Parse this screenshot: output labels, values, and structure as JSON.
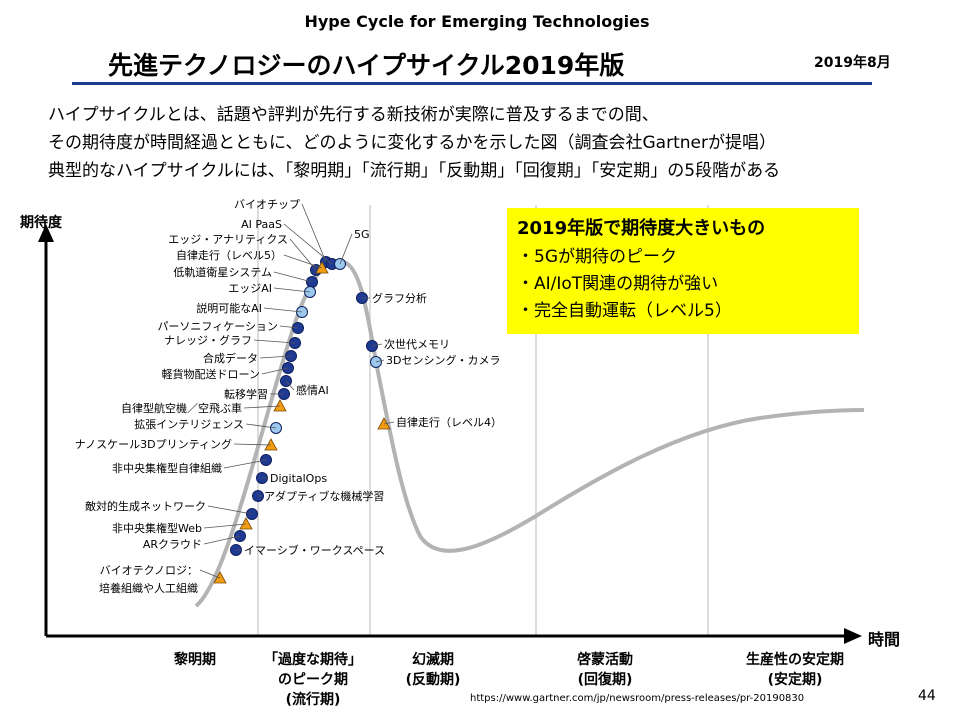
{
  "header": {
    "subtitle": "Hype Cycle for Emerging Technologies",
    "title": "先進テクノロジーのハイプサイクル2019年版",
    "date": "2019年8月"
  },
  "intro": {
    "line1": "ハイプサイクルとは、話題や評判が先行する新技術が実際に普及するまでの間、",
    "line2": "その期待度が時間経過とともに、どのように変化するかを示した図（調査会社Gartnerが提唱）",
    "line3": "典型的なハイプサイクルには、「黎明期」「流行期」「反動期」「回復期」「安定期」の5段階がある"
  },
  "axes": {
    "y_label": "期待度",
    "x_label": "時間"
  },
  "callout": {
    "title": "2019年版で期待度大きいもの",
    "items": [
      "・5Gが期待のピーク",
      "・AI/IoT関連の期待が強い",
      "・完全自動運転（レベル5）"
    ]
  },
  "phases": {
    "p1": "黎明期",
    "p2_line1": "「過度な期待」",
    "p2_line2": "のピーク期",
    "p2_line3": "(流行期)",
    "p3_line1": "幻滅期",
    "p3_line2": "(反動期)",
    "p4_line1": "啓蒙活動",
    "p4_line2": "(回復期)",
    "p5_line1": "生産性の安定期",
    "p5_line2": "(安定期)"
  },
  "colors": {
    "dark_marker": "#1f3a93",
    "light_marker": "#9ec9ef",
    "triangle_marker": "#f39c12",
    "curve": "#b3b3b3",
    "callout_bg": "#ffff00",
    "title_rule": "#1a3a8a"
  },
  "technologies": [
    {
      "name": "バイオチップ",
      "marker": "dark"
    },
    {
      "name": "AI PaaS",
      "marker": "dark"
    },
    {
      "name": "5G",
      "marker": "light"
    },
    {
      "name": "エッジ・アナリティクス",
      "marker": "dark"
    },
    {
      "name": "自律走行（レベル5）",
      "marker": "triangle"
    },
    {
      "name": "低軌道衛星システム",
      "marker": "dark"
    },
    {
      "name": "エッジAI",
      "marker": "light"
    },
    {
      "name": "グラフ分析",
      "marker": "dark"
    },
    {
      "name": "説明可能なAI",
      "marker": "light"
    },
    {
      "name": "パーソニフィケーション",
      "marker": "dark"
    },
    {
      "name": "ナレッジ・グラフ",
      "marker": "dark"
    },
    {
      "name": "次世代メモリ",
      "marker": "dark"
    },
    {
      "name": "3Dセンシング・カメラ",
      "marker": "light"
    },
    {
      "name": "合成データ",
      "marker": "dark"
    },
    {
      "name": "軽貨物配送ドローン",
      "marker": "dark"
    },
    {
      "name": "感情AI",
      "marker": "dark"
    },
    {
      "name": "転移学習",
      "marker": "dark"
    },
    {
      "name": "自律型航空機／空飛ぶ車",
      "marker": "triangle"
    },
    {
      "name": "拡張インテリジェンス",
      "marker": "light"
    },
    {
      "name": "自律走行（レベル4）",
      "marker": "triangle"
    },
    {
      "name": "ナノスケール3Dプリンティング",
      "marker": "triangle"
    },
    {
      "name": "非中央集権型自律組織",
      "marker": "dark"
    },
    {
      "name": "DigitalOps",
      "marker": "dark"
    },
    {
      "name": "アダプティブな機械学習",
      "marker": "dark"
    },
    {
      "name": "敵対的生成ネットワーク",
      "marker": "dark"
    },
    {
      "name": "非中央集権型Web",
      "marker": "triangle"
    },
    {
      "name": "ARクラウド",
      "marker": "dark"
    },
    {
      "name": "イマーシブ・ワークスペース",
      "marker": "dark"
    },
    {
      "name": "バイオテクノロジ：",
      "marker": "triangle"
    },
    {
      "name": "培養組織や人工組織",
      "marker": "none"
    }
  ],
  "source": "https://www.gartner.com/jp/newsroom/press-releases/pr-20190830",
  "page_number": "44"
}
